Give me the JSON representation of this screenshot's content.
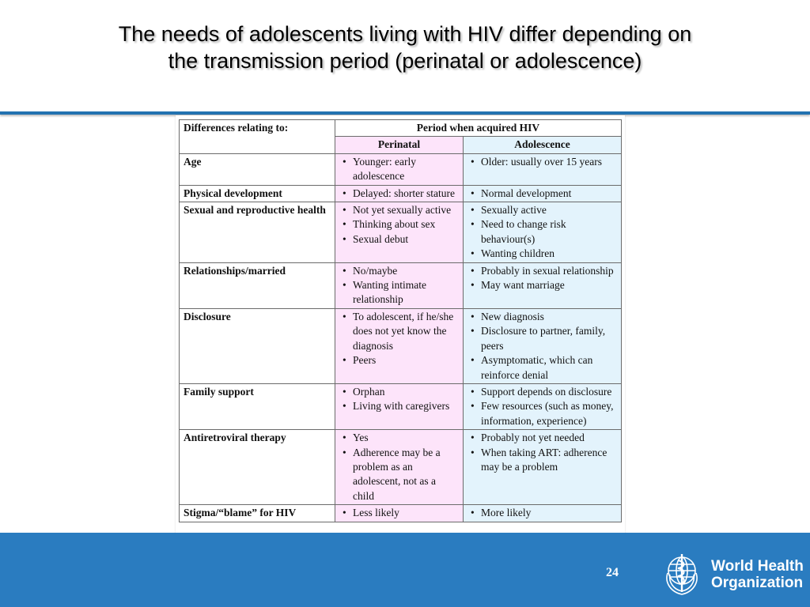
{
  "title": {
    "line1": "The needs of adolescents living with HIV differ depending on",
    "line2": "the transmission period (perinatal or adolescence)"
  },
  "table": {
    "header": {
      "differences": "Differences relating to:",
      "period": "Period when acquired HIV",
      "perinatal": "Perinatal",
      "adolescence": "Adolescence"
    },
    "rows": [
      {
        "category": "Age",
        "perinatal": [
          "Younger: early adolescence"
        ],
        "adolescence": [
          "Older: usually over 15 years"
        ]
      },
      {
        "category": "Physical development",
        "perinatal": [
          "Delayed: shorter stature"
        ],
        "adolescence": [
          "Normal development"
        ]
      },
      {
        "category": "Sexual and reproductive health",
        "perinatal": [
          "Not yet sexually active",
          "Thinking about sex",
          "Sexual debut"
        ],
        "adolescence": [
          "Sexually active",
          "Need to change risk behaviour(s)",
          "Wanting children"
        ]
      },
      {
        "category": "Relationships/married",
        "perinatal": [
          "No/maybe",
          "Wanting intimate relationship"
        ],
        "adolescence": [
          "Probably in sexual relationship",
          "May want marriage"
        ]
      },
      {
        "category": "Disclosure",
        "perinatal": [
          "To adolescent, if he/she does not yet know the diagnosis",
          "Peers"
        ],
        "adolescence": [
          "New diagnosis",
          "Disclosure to partner, family, peers",
          "Asymptomatic, which can reinforce denial"
        ]
      },
      {
        "category": "Family support",
        "perinatal": [
          "Orphan",
          "Living with caregivers"
        ],
        "adolescence": [
          "Support depends on disclosure",
          "Few resources (such as money, information, experience)"
        ]
      },
      {
        "category": "Antiretroviral therapy",
        "perinatal": [
          "Yes",
          "Adherence may be a problem as an adolescent, not as a child"
        ],
        "adolescence": [
          "Probably not yet needed",
          "When taking ART: adherence may be a problem"
        ]
      },
      {
        "category": "Stigma/“blame” for HIV",
        "perinatal": [
          "Less likely"
        ],
        "adolescence": [
          "More likely"
        ]
      }
    ]
  },
  "footer": {
    "page_number": "24",
    "org_line1": "World Health",
    "org_line2": "Organization"
  },
  "colors": {
    "footer_bg": "#2a7cc0",
    "rule": "#2272b0",
    "perinatal_bg": "#fde4fa",
    "adolescence_bg": "#e3f3fc"
  }
}
